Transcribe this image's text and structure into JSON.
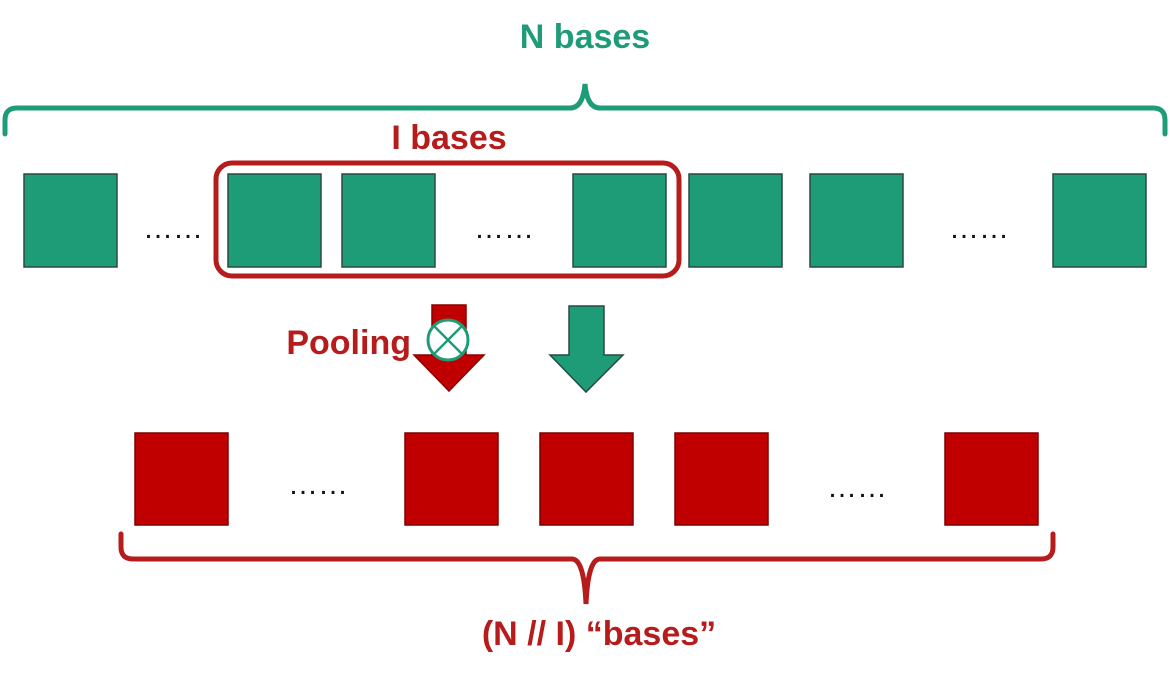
{
  "labels": {
    "top_brace": "N bases",
    "window": "I bases",
    "pooling": "Pooling",
    "bottom_brace": "(N // I) “bases”"
  },
  "ellipsis": "……",
  "colors": {
    "green": "#1e9c78",
    "green_text": "#1f9b7a",
    "red": "#c00000",
    "red_text": "#b71c1c",
    "box_border": "#2a4a40"
  },
  "icons": {
    "pooling_operator": "circled-times-icon"
  }
}
